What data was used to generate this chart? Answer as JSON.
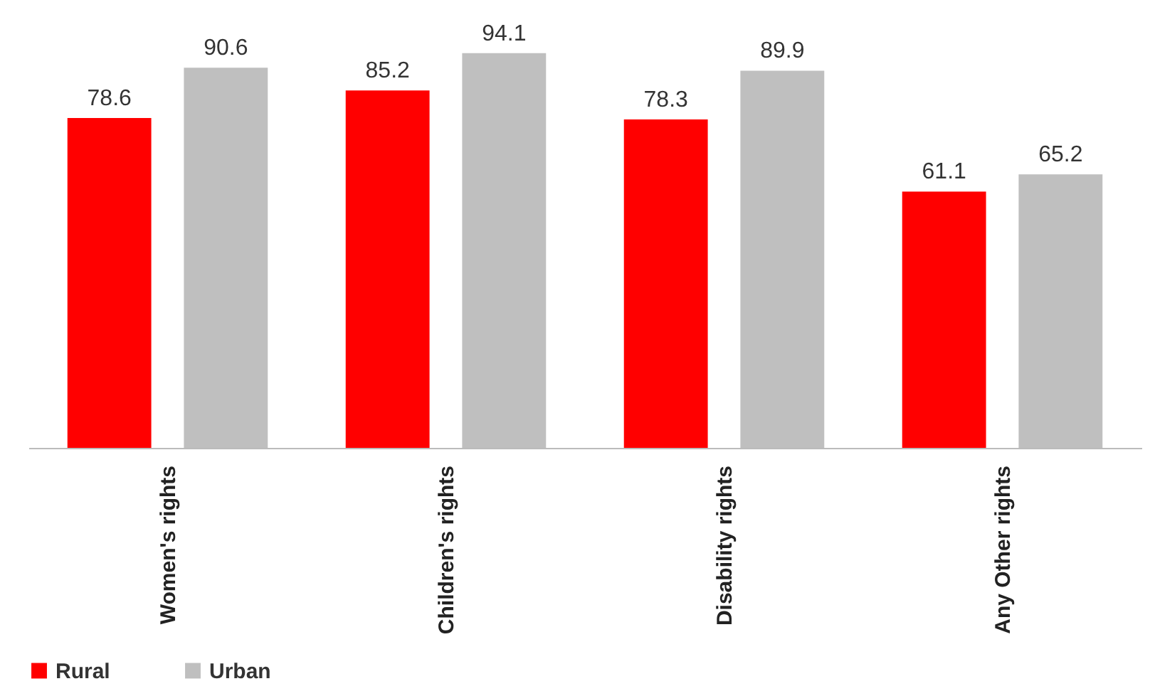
{
  "chart_data": {
    "type": "bar",
    "categories": [
      "Women's rights",
      "Children's rights",
      "Disability rights",
      "Any Other rights"
    ],
    "series": [
      {
        "name": "Rural",
        "color": "#ff0000",
        "values": [
          78.6,
          85.2,
          78.3,
          61.1
        ]
      },
      {
        "name": "Urban",
        "color": "#bfbfbf",
        "values": [
          90.6,
          94.1,
          89.9,
          65.2
        ]
      }
    ],
    "data_labels": true,
    "legend": "bottom",
    "grid": false
  }
}
